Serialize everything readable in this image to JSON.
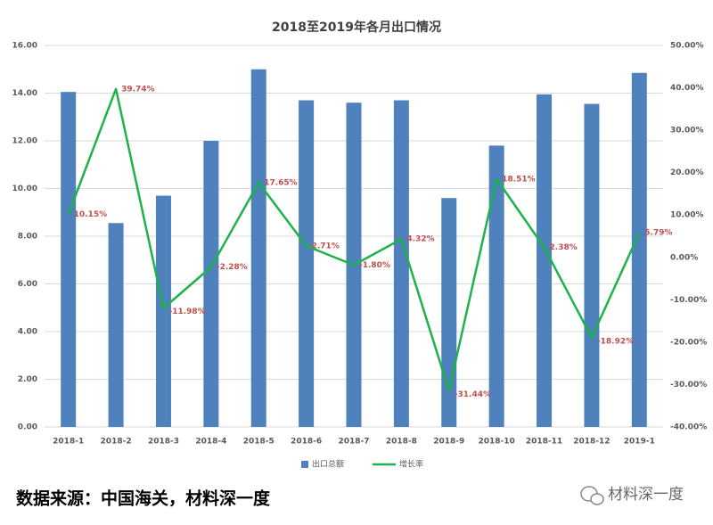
{
  "chart_data": {
    "type": "bar-line",
    "title": "2018至2019年各月出口情况",
    "categories": [
      "2018-1",
      "2018-2",
      "2018-3",
      "2018-4",
      "2018-5",
      "2018-6",
      "2018-7",
      "2018-8",
      "2018-9",
      "2018-10",
      "2018-11",
      "2018-12",
      "2019-1"
    ],
    "series": [
      {
        "name": "出口总额",
        "type": "bar",
        "color": "#4f81bd",
        "values": [
          14.05,
          8.55,
          9.7,
          12.0,
          15.0,
          13.7,
          13.6,
          13.7,
          9.6,
          11.8,
          13.95,
          13.55,
          14.85
        ]
      },
      {
        "name": "增长率",
        "type": "line",
        "axis": "y2",
        "color": "#1db34a",
        "values": [
          10.15,
          39.74,
          -11.98,
          -2.28,
          17.65,
          2.71,
          -1.8,
          4.32,
          -31.44,
          18.51,
          2.38,
          -18.92,
          5.79
        ],
        "value_labels": [
          "10.15%",
          "39.74%",
          "-11.98%",
          "-2.28%",
          "17.65%",
          "2.71%",
          "-1.80%",
          "4.32%",
          "-31.44%",
          "18.51%",
          "2.38%",
          "-18.92%",
          "5.79%"
        ],
        "label_color": "#c0504d"
      }
    ],
    "ylim": [
      0,
      16
    ],
    "yticks": [
      {
        "value": 0,
        "label": "0.00"
      },
      {
        "value": 2,
        "label": "2.00"
      },
      {
        "value": 4,
        "label": "4.00"
      },
      {
        "value": 6,
        "label": "6.00"
      },
      {
        "value": 8,
        "label": "8.00"
      },
      {
        "value": 10,
        "label": "10.00"
      },
      {
        "value": 12,
        "label": "12.00"
      },
      {
        "value": 14,
        "label": "14.00"
      },
      {
        "value": 16,
        "label": "16.00"
      }
    ],
    "y2lim": [
      -40,
      50
    ],
    "y2ticks": [
      {
        "value": -40,
        "label": "-40.00%"
      },
      {
        "value": -30,
        "label": "-30.00%"
      },
      {
        "value": -20,
        "label": "-20.00%"
      },
      {
        "value": -10,
        "label": "-10.00%"
      },
      {
        "value": 0,
        "label": "0.00%"
      },
      {
        "value": 10,
        "label": "10.00%"
      },
      {
        "value": 20,
        "label": "20.00%"
      },
      {
        "value": 30,
        "label": "30.00%"
      },
      {
        "value": 40,
        "label": "40.00%"
      },
      {
        "value": 50,
        "label": "50.00%"
      }
    ],
    "grid": true,
    "legend": "bottom",
    "source": "数据来源：中国海关，材料深一度",
    "watermark": "材料深一度"
  }
}
